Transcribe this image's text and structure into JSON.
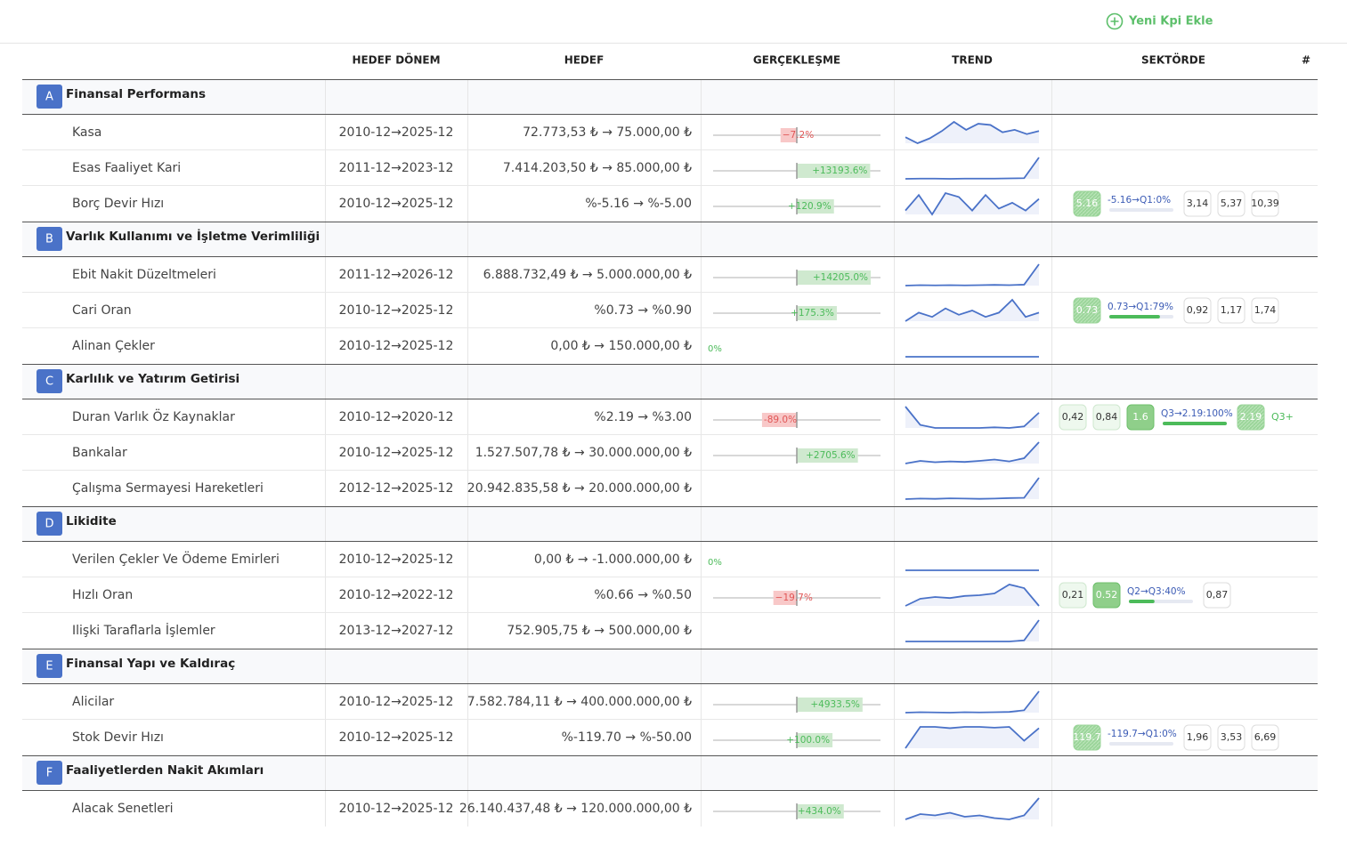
{
  "header": {
    "button": "Yeni Kpi Ekle"
  },
  "table": {
    "columns": [
      "HEDEF DÖNEM",
      "HEDEF",
      "GERÇEKLEŞME",
      "TREND",
      "SEKTÖRDE",
      "#"
    ],
    "groups": [
      {
        "letter": "A",
        "title": "Finansal Performans",
        "rows": [
          {
            "name": "Kasa",
            "period": "2010-12→2025-12",
            "target": "72.773,53 ₺ → 75.000,00 ₺",
            "realization": -7.2,
            "realization_label": "−7.2%",
            "trend": [
              50,
              40,
              48,
              60,
              75,
              62,
              72,
              70,
              58,
              62,
              55,
              60
            ],
            "sector": []
          },
          {
            "name": "Esas Faaliyet Kari",
            "period": "2011-12→2023-12",
            "target": "7.414.203,50 ₺ → 85.000,00 ₺",
            "realization": 13193.6,
            "realization_label": "+13193.6%",
            "trend": [
              5,
              6,
              6,
              5,
              6,
              6,
              6,
              7,
              8,
              100
            ],
            "sector": []
          },
          {
            "name": "Borç Devir Hızı",
            "period": "2010-12→2025-12",
            "target": "%-5.16 → %-5.00",
            "realization": 120.9,
            "realization_label": "+120.9%",
            "trend": [
              40,
              80,
              30,
              85,
              75,
              40,
              80,
              45,
              60,
              40,
              70
            ],
            "sector": [
              {
                "kind": "hatch",
                "label": "5.16"
              },
              {
                "kind": "progress",
                "label": "-5.16→Q1:0%",
                "value": 0
              },
              {
                "kind": "box",
                "label": "3,14"
              },
              {
                "kind": "box",
                "label": "5,37"
              },
              {
                "kind": "box",
                "label": "10,39"
              }
            ]
          }
        ]
      },
      {
        "letter": "B",
        "title": "Varlık Kullanımı ve İşletme Verimliliği",
        "rows": [
          {
            "name": "Ebit Nakit Düzeltmeleri",
            "period": "2011-12→2026-12",
            "target": "6.888.732,49 ₺ → 5.000.000,00 ₺",
            "realization": 14205.0,
            "realization_label": "+14205.0%",
            "trend": [
              10,
              12,
              11,
              12,
              11,
              12,
              13,
              12,
              14,
              100
            ],
            "sector": []
          },
          {
            "name": "Cari Oran",
            "period": "2010-12→2025-12",
            "target": "%0.73 → %0.90",
            "realization": 175.3,
            "realization_label": "+175.3%",
            "trend": [
              30,
              50,
              40,
              60,
              45,
              55,
              40,
              50,
              80,
              40,
              50
            ],
            "sector": [
              {
                "kind": "hatch",
                "label": "0.73"
              },
              {
                "kind": "progress",
                "label": "0.73→Q1:79%",
                "value": 79
              },
              {
                "kind": "box",
                "label": "0,92"
              },
              {
                "kind": "box",
                "label": "1,17"
              },
              {
                "kind": "box",
                "label": "1,74"
              }
            ]
          },
          {
            "name": "Alinan Çekler",
            "period": "2010-12→2025-12",
            "target": "0,00 ₺ → 150.000,00 ₺",
            "realization": 0,
            "realization_label": "0%",
            "trend": [
              0,
              0,
              0,
              0,
              0,
              0,
              0,
              0,
              0,
              0
            ],
            "sector": []
          }
        ]
      },
      {
        "letter": "C",
        "title": "Karlılık ve Yatırım Getirisi",
        "rows": [
          {
            "name": "Duran Varlık Öz Kaynaklar",
            "period": "2010-12→2020-12",
            "target": "%2.19 → %3.00",
            "realization": -89.0,
            "realization_label": "-89.0%",
            "trend": [
              90,
              30,
              20,
              20,
              20,
              20,
              22,
              20,
              25,
              70
            ],
            "sector": [
              {
                "kind": "light",
                "label": "0,42"
              },
              {
                "kind": "light",
                "label": "0,84"
              },
              {
                "kind": "strong",
                "label": "1.6"
              },
              {
                "kind": "progress",
                "label": "Q3→2.19:100%",
                "value": 100
              },
              {
                "kind": "hatch",
                "label": "2.19"
              },
              {
                "kind": "text",
                "label": "Q3+"
              }
            ]
          },
          {
            "name": "Bankalar",
            "period": "2010-12→2025-12",
            "target": "1.527.507,78 ₺ → 30.000.000,00 ₺",
            "realization": 2705.6,
            "realization_label": "+2705.6%",
            "trend": [
              20,
              30,
              25,
              28,
              26,
              30,
              35,
              28,
              40,
              100
            ],
            "sector": []
          },
          {
            "name": "Çalışma Sermayesi Hareketleri",
            "period": "2012-12→2025-12",
            "target": "20.942.835,58 ₺ → 20.000.000,00 ₺",
            "trend": [
              10,
              12,
              11,
              13,
              12,
              11,
              12,
              14,
              15,
              90
            ],
            "sector": []
          }
        ]
      },
      {
        "letter": "D",
        "title": "Likidite",
        "rows": [
          {
            "name": "Verilen Çekler Ve Ödeme Emirleri",
            "period": "2010-12→2025-12",
            "target": "0,00 ₺ → -1.000.000,00 ₺",
            "realization": 0,
            "realization_label": "0%",
            "trend": [
              0,
              0,
              0,
              0,
              0,
              0,
              0,
              0,
              0,
              0
            ],
            "sector": []
          },
          {
            "name": "Hızlı Oran",
            "period": "2010-12→2022-12",
            "target": "%0.66 → %0.50",
            "realization": -19.7,
            "realization_label": "−19.7%",
            "trend": [
              20,
              40,
              45,
              42,
              48,
              50,
              55,
              80,
              70,
              20
            ],
            "sector": [
              {
                "kind": "light",
                "label": "0,21"
              },
              {
                "kind": "strong",
                "label": "0.52"
              },
              {
                "kind": "progress",
                "label": "Q2→Q3:40%",
                "value": 40
              },
              {
                "kind": "box",
                "label": "0,87"
              }
            ]
          },
          {
            "name": "Ilişki Taraflarla İşlemler",
            "period": "2013-12→2027-12",
            "target": "752.905,75 ₺ → 500.000,00 ₺",
            "trend": [
              5,
              5,
              5,
              5,
              5,
              5,
              5,
              5,
              10,
              100
            ],
            "sector": []
          }
        ]
      },
      {
        "letter": "E",
        "title": "Finansal Yapı ve Kaldıraç",
        "rows": [
          {
            "name": "Alicilar",
            "period": "2010-12→2025-12",
            "target": "7.582.784,11 ₺ → 400.000.000,00 ₺",
            "realization": 4933.5,
            "realization_label": "+4933.5%",
            "trend": [
              10,
              12,
              11,
              10,
              12,
              11,
              12,
              13,
              20,
              100
            ],
            "sector": []
          },
          {
            "name": "Stok Devir Hızı",
            "period": "2010-12→2025-12",
            "target": "%-119.70 → %-50.00",
            "realization": 100.0,
            "realization_label": "+100.0%",
            "trend": [
              10,
              95,
              95,
              90,
              95,
              95,
              92,
              95,
              40,
              90
            ],
            "sector": [
              {
                "kind": "hatch",
                "label": "119.7"
              },
              {
                "kind": "progress",
                "label": "-119.7→Q1:0%",
                "value": 0
              },
              {
                "kind": "box",
                "label": "1,96"
              },
              {
                "kind": "box",
                "label": "3,53"
              },
              {
                "kind": "box",
                "label": "6,69"
              }
            ]
          }
        ]
      },
      {
        "letter": "F",
        "title": "Faaliyetlerden Nakit Akımları",
        "rows": [
          {
            "name": "Alacak Senetleri",
            "period": "2010-12→2025-12",
            "target": "26.140.437,48 ₺ → 120.000.000,00 ₺",
            "realization": 434.0,
            "realization_label": "+434.0%",
            "trend": [
              20,
              40,
              35,
              45,
              30,
              35,
              25,
              20,
              35,
              100
            ],
            "sector": []
          }
        ]
      }
    ]
  }
}
